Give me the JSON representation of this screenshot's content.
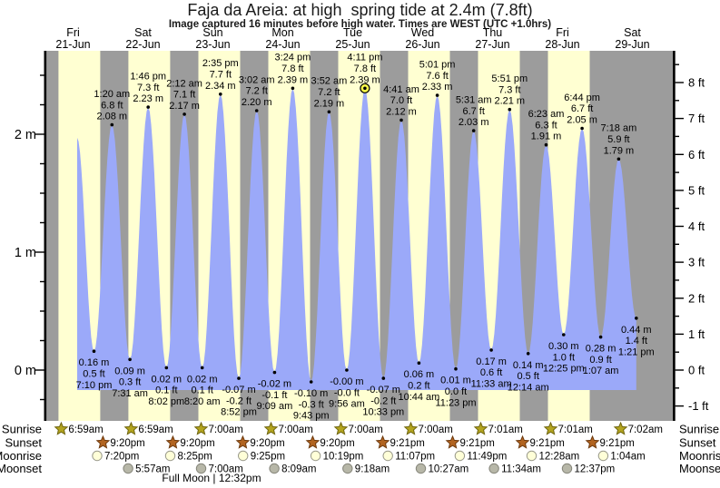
{
  "title": "Faja da Areia: at high  spring tide at 2.4m (7.8ft)",
  "subtitle": "Image captured 16 minutes before high water. Times are WEST (UTC +1.0hrs)",
  "colors": {
    "day_band": "#ffffd2",
    "night_band": "#9c9c9c",
    "tide_fill": "#9ba9f9",
    "date_label_red": "#e8302e",
    "capture_marker_fill": "#ffff4a",
    "sunrise_star_fill": "#b3a41f",
    "sunrise_star_stroke": "#6f650e",
    "sunset_star_fill": "#b26420",
    "sunset_star_stroke": "#6e3a0e",
    "moonrise_circle_fill": "#ffffd8",
    "moonrise_circle_stroke": "#99998a",
    "moonset_circle_fill": "#b7b7a8",
    "moonset_circle_stroke": "#85857a"
  },
  "days": [
    {
      "name": "Fri",
      "date": "21-Jun"
    },
    {
      "name": "Sat",
      "date": "22-Jun"
    },
    {
      "name": "Sun",
      "date": "23-Jun"
    },
    {
      "name": "Mon",
      "date": "24-Jun"
    },
    {
      "name": "Tue",
      "date": "25-Jun"
    },
    {
      "name": "Wed",
      "date": "26-Jun"
    },
    {
      "name": "Thu",
      "date": "27-Jun"
    },
    {
      "name": "Fri",
      "date": "28-Jun"
    },
    {
      "name": "Sat",
      "date": "29-Jun"
    }
  ],
  "axes": {
    "left": [
      {
        "v": 2,
        "label": "2 m"
      },
      {
        "v": 1,
        "label": "1 m"
      },
      {
        "v": 0,
        "label": "0 m"
      }
    ],
    "right": [
      {
        "v": 8,
        "label": "8 ft"
      },
      {
        "v": 7,
        "label": "7 ft"
      },
      {
        "v": 6,
        "label": "6 ft"
      },
      {
        "v": 5,
        "label": "5 ft"
      },
      {
        "v": 4,
        "label": "4 ft"
      },
      {
        "v": 3,
        "label": "3 ft"
      },
      {
        "v": 2,
        "label": "2 ft"
      },
      {
        "v": 1,
        "label": "1 ft"
      },
      {
        "v": 0,
        "label": "0 ft"
      },
      {
        "v": -1,
        "label": "-1 ft"
      }
    ]
  },
  "chart_data": {
    "type": "area",
    "title": "Faja da Areia: at high  spring tide at 2.4m (7.8ft)",
    "y_unit_left": "m",
    "y_unit_right": "ft",
    "ylim_m": [
      -0.43,
      2.71
    ],
    "x_categories": [
      "Fri 21-Jun",
      "Sat 22-Jun",
      "Sun 23-Jun",
      "Mon 24-Jun",
      "Tue 25-Jun",
      "Wed 26-Jun",
      "Thu 27-Jun",
      "Fri 28-Jun",
      "Sat 29-Jun"
    ],
    "extremes": [
      {
        "type": "high",
        "day": 0,
        "hour": 13.4,
        "m": 1.97,
        "label": null
      },
      {
        "type": "low",
        "day": 0,
        "hour": 19.17,
        "m": 0.16,
        "label": [
          "0.16 m",
          "0.5 ft",
          "7:10 pm"
        ]
      },
      {
        "type": "high",
        "day": 1,
        "hour": 1.33,
        "m": 2.08,
        "label": [
          "1:20 am",
          "6.8 ft",
          "2.08 m"
        ]
      },
      {
        "type": "low",
        "day": 1,
        "hour": 7.52,
        "m": 0.09,
        "label": [
          "0.09 m",
          "0.3 ft",
          "7:31 am"
        ]
      },
      {
        "type": "high",
        "day": 1,
        "hour": 13.77,
        "m": 2.23,
        "label": [
          "1:46 pm",
          "7.3 ft",
          "2.23 m"
        ]
      },
      {
        "type": "low",
        "day": 1,
        "hour": 20.03,
        "m": 0.02,
        "label": [
          "0.02 m",
          "0.1 ft",
          "8:02 pm"
        ]
      },
      {
        "type": "high",
        "day": 2,
        "hour": 2.2,
        "m": 2.17,
        "label": [
          "2:12 am",
          "7.1 ft",
          "2.17 m"
        ]
      },
      {
        "type": "low",
        "day": 2,
        "hour": 8.33,
        "m": 0.02,
        "label": [
          "0.02 m",
          "0.1 ft",
          "8:20 am"
        ]
      },
      {
        "type": "high",
        "day": 2,
        "hour": 14.58,
        "m": 2.34,
        "label": [
          "2:35 pm",
          "7.7 ft",
          "2.34 m"
        ]
      },
      {
        "type": "low",
        "day": 2,
        "hour": 20.87,
        "m": -0.07,
        "label": [
          "-0.07 m",
          "-0.2 ft",
          "8:52 pm"
        ]
      },
      {
        "type": "high",
        "day": 3,
        "hour": 3.03,
        "m": 2.2,
        "label": [
          "3:02 am",
          "7.2 ft",
          "2.20 m"
        ]
      },
      {
        "type": "low",
        "day": 3,
        "hour": 9.15,
        "m": -0.02,
        "label": [
          "-0.02 m",
          "-0.1 ft",
          "9:09 am"
        ]
      },
      {
        "type": "high",
        "day": 3,
        "hour": 15.4,
        "m": 2.39,
        "label": [
          "3:24 pm",
          "7.8 ft",
          "2.39 m"
        ]
      },
      {
        "type": "low",
        "day": 3,
        "hour": 21.72,
        "m": -0.1,
        "label": [
          "-0.10 m",
          "-0.3 ft",
          "9:43 pm"
        ]
      },
      {
        "type": "high",
        "day": 4,
        "hour": 3.87,
        "m": 2.19,
        "label": [
          "3:52 am",
          "7.2 ft",
          "2.19 m"
        ]
      },
      {
        "type": "low",
        "day": 4,
        "hour": 9.93,
        "m": 0.0,
        "label": [
          "-0.00 m",
          "-0.0 ft",
          "9:56 am"
        ]
      },
      {
        "type": "high",
        "day": 4,
        "hour": 16.18,
        "m": 2.39,
        "label": [
          "4:11 pm",
          "7.8 ft",
          "2.39 m"
        ],
        "capture": true
      },
      {
        "type": "low",
        "day": 4,
        "hour": 22.55,
        "m": -0.07,
        "label": [
          "-0.07 m",
          "-0.2 ft",
          "10:33 pm"
        ]
      },
      {
        "type": "high",
        "day": 5,
        "hour": 4.68,
        "m": 2.12,
        "label": [
          "4:41 am",
          "7.0 ft",
          "2.12 m"
        ]
      },
      {
        "type": "low",
        "day": 5,
        "hour": 10.73,
        "m": 0.06,
        "label": [
          "0.06 m",
          "0.2 ft",
          "10:44 am"
        ]
      },
      {
        "type": "high",
        "day": 5,
        "hour": 17.02,
        "m": 2.33,
        "label": [
          "5:01 pm",
          "7.6 ft",
          "2.33 m"
        ]
      },
      {
        "type": "low",
        "day": 5,
        "hour": 23.38,
        "m": 0.01,
        "label": [
          "0.01 m",
          "0.0 ft",
          "11:23 pm"
        ]
      },
      {
        "type": "high",
        "day": 6,
        "hour": 5.52,
        "m": 2.03,
        "label": [
          "5:31 am",
          "6.7 ft",
          "2.03 m"
        ]
      },
      {
        "type": "low",
        "day": 6,
        "hour": 11.55,
        "m": 0.17,
        "label": [
          "0.17 m",
          "0.6 ft",
          "11:33 am"
        ]
      },
      {
        "type": "high",
        "day": 6,
        "hour": 17.85,
        "m": 2.21,
        "label": [
          "5:51 pm",
          "7.3 ft",
          "2.21 m"
        ]
      },
      {
        "type": "low",
        "day": 7,
        "hour": 0.23,
        "m": 0.14,
        "label": [
          "0.14 m",
          "0.5 ft",
          "12:14 am"
        ]
      },
      {
        "type": "high",
        "day": 7,
        "hour": 6.38,
        "m": 1.91,
        "label": [
          "6:23 am",
          "6.3 ft",
          "1.91 m"
        ]
      },
      {
        "type": "low",
        "day": 7,
        "hour": 12.42,
        "m": 0.3,
        "label": [
          "0.30 m",
          "1.0 ft",
          "12:25 pm"
        ]
      },
      {
        "type": "high",
        "day": 7,
        "hour": 18.73,
        "m": 2.05,
        "label": [
          "6:44 pm",
          "6.7 ft",
          "2.05 m"
        ]
      },
      {
        "type": "low",
        "day": 8,
        "hour": 1.12,
        "m": 0.28,
        "label": [
          "0.28 m",
          "0.9 ft",
          "1:07 am"
        ]
      },
      {
        "type": "high",
        "day": 8,
        "hour": 7.3,
        "m": 1.79,
        "label": [
          "7:18 am",
          "5.9 ft",
          "1.79 m"
        ]
      },
      {
        "type": "low",
        "day": 8,
        "hour": 13.35,
        "m": 0.44,
        "label": [
          "0.44 m",
          "1.4 ft",
          "1:21 pm"
        ]
      }
    ]
  },
  "sun_moon": {
    "rows": [
      {
        "label": "Sunrise",
        "icon": "sunrise-star-icon",
        "shape": "star",
        "fill": "#b3a41f",
        "stroke": "#6f650e",
        "entries": [
          {
            "day": 0,
            "hour": 6.98,
            "time": "6:59am"
          },
          {
            "day": 1,
            "hour": 6.98,
            "time": "6:59am"
          },
          {
            "day": 2,
            "hour": 7.0,
            "time": "7:00am"
          },
          {
            "day": 3,
            "hour": 7.0,
            "time": "7:00am"
          },
          {
            "day": 4,
            "hour": 7.0,
            "time": "7:00am"
          },
          {
            "day": 5,
            "hour": 7.0,
            "time": "7:00am"
          },
          {
            "day": 6,
            "hour": 7.02,
            "time": "7:01am"
          },
          {
            "day": 7,
            "hour": 7.02,
            "time": "7:01am"
          },
          {
            "day": 8,
            "hour": 7.03,
            "time": "7:02am"
          }
        ]
      },
      {
        "label": "Sunset",
        "icon": "sunset-star-icon",
        "shape": "star",
        "fill": "#b26420",
        "stroke": "#6e3a0e",
        "entries": [
          {
            "day": 0,
            "hour": 21.33,
            "time": "9:20pm"
          },
          {
            "day": 1,
            "hour": 21.33,
            "time": "9:20pm"
          },
          {
            "day": 2,
            "hour": 21.33,
            "time": "9:20pm"
          },
          {
            "day": 3,
            "hour": 21.33,
            "time": "9:20pm"
          },
          {
            "day": 4,
            "hour": 21.35,
            "time": "9:21pm"
          },
          {
            "day": 5,
            "hour": 21.35,
            "time": "9:21pm"
          },
          {
            "day": 6,
            "hour": 21.35,
            "time": "9:21pm"
          },
          {
            "day": 7,
            "hour": 21.35,
            "time": "9:21pm"
          }
        ]
      },
      {
        "label": "Moonrise",
        "icon": "moonrise-circle-icon",
        "shape": "circle",
        "fill": "#ffffd8",
        "stroke": "#99998a",
        "entries": [
          {
            "day": 0,
            "hour": 19.33,
            "time": "7:20pm"
          },
          {
            "day": 1,
            "hour": 20.42,
            "time": "8:25pm"
          },
          {
            "day": 2,
            "hour": 21.42,
            "time": "9:25pm"
          },
          {
            "day": 3,
            "hour": 22.32,
            "time": "10:19pm"
          },
          {
            "day": 4,
            "hour": 23.12,
            "time": "11:07pm"
          },
          {
            "day": 5,
            "hour": 23.82,
            "time": "11:49pm"
          },
          {
            "day": 7,
            "hour": 0.47,
            "time": "12:28am"
          },
          {
            "day": 8,
            "hour": 1.07,
            "time": "1:04am"
          }
        ]
      },
      {
        "label": "Moonset",
        "icon": "moonset-circle-icon",
        "shape": "circle",
        "fill": "#b7b7a8",
        "stroke": "#85857a",
        "entries": [
          {
            "day": 1,
            "hour": 5.95,
            "time": "5:57am"
          },
          {
            "day": 2,
            "hour": 7.0,
            "time": "7:00am"
          },
          {
            "day": 3,
            "hour": 8.15,
            "time": "8:09am"
          },
          {
            "day": 4,
            "hour": 9.3,
            "time": "9:18am"
          },
          {
            "day": 5,
            "hour": 10.45,
            "time": "10:27am"
          },
          {
            "day": 6,
            "hour": 11.57,
            "time": "11:34am"
          },
          {
            "day": 7,
            "hour": 12.62,
            "time": "12:37pm"
          }
        ]
      }
    ],
    "moon_phase": "Full Moon | 12:32pm"
  }
}
